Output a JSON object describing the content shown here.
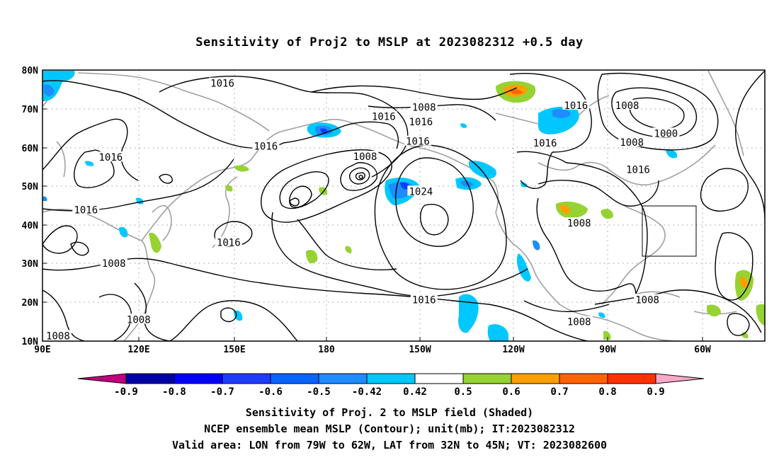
{
  "title": "Sensitivity of Proj2 to MSLP at 2023082312 +0.5 day",
  "lat_labels": [
    "80N",
    "70N",
    "60N",
    "50N",
    "40N",
    "30N",
    "20N",
    "10N"
  ],
  "lon_labels": [
    "90E",
    "120E",
    "150E",
    "180",
    "150W",
    "120W",
    "90W",
    "60W"
  ],
  "contour_labels": [
    {
      "text": "1016",
      "lon": 148,
      "lat": 76.4
    },
    {
      "text": "1008",
      "lon": -147,
      "lat": 70.2
    },
    {
      "text": "1016",
      "lon": -160,
      "lat": 67.8
    },
    {
      "text": "1016",
      "lon": -148,
      "lat": 66.5
    },
    {
      "text": "1016",
      "lon": -98,
      "lat": 70.7
    },
    {
      "text": "1008",
      "lon": -81.5,
      "lat": 70.7
    },
    {
      "text": "1000",
      "lon": -69,
      "lat": 63.5
    },
    {
      "text": "1016",
      "lon": -108,
      "lat": 61
    },
    {
      "text": "1008",
      "lon": -80,
      "lat": 61.2
    },
    {
      "text": "1016",
      "lon": 162,
      "lat": 60.2
    },
    {
      "text": "1016",
      "lon": 112,
      "lat": 57.3
    },
    {
      "text": "1008",
      "lon": -166,
      "lat": 57.5
    },
    {
      "text": "1016",
      "lon": -149,
      "lat": 61.4
    },
    {
      "text": "1016",
      "lon": -78,
      "lat": 54.1
    },
    {
      "text": "1024",
      "lon": -148,
      "lat": 48.5
    },
    {
      "text": "1016",
      "lon": 104,
      "lat": 43.7
    },
    {
      "text": "1008",
      "lon": -97,
      "lat": 40.3
    },
    {
      "text": "1016",
      "lon": 150,
      "lat": 35.3
    },
    {
      "text": "1008",
      "lon": 113,
      "lat": 29.9
    },
    {
      "text": "1016",
      "lon": -147,
      "lat": 20.5
    },
    {
      "text": "1008",
      "lon": -75,
      "lat": 20.5
    },
    {
      "text": "1008",
      "lon": 121,
      "lat": 15.4
    },
    {
      "text": "1008",
      "lon": -97,
      "lat": 14.8
    },
    {
      "text": "1008",
      "lon": 95,
      "lat": 11.2
    }
  ],
  "colorbar": {
    "levels": [
      "-0.9",
      "-0.8",
      "-0.7",
      "-0.6",
      "-0.5",
      "-0.42",
      "0.42",
      "0.5",
      "0.6",
      "0.7",
      "0.8",
      "0.9"
    ],
    "colors": [
      "#c0007c",
      "#0000a8",
      "#0000ff",
      "#1e3cff",
      "#0a64ff",
      "#1e8cff",
      "#00c8ff",
      "#ffffff",
      "#96d232",
      "#ffa000",
      "#ff6400",
      "#ff3200",
      "#ff0000",
      "#f8a8c8"
    ]
  },
  "shading_colors": {
    "light_blue": "#00c8ff",
    "blue": "#1e8cff",
    "dark_blue": "#0a40ff",
    "green": "#96d232",
    "orange": "#ffa000",
    "red_orange": "#ff6400"
  },
  "valid_box": {
    "lon_from": "79W",
    "lon_to": "62W",
    "lat_from": "32N",
    "lat_to": "45N"
  },
  "caption_lines": [
    "Sensitivity of Proj. 2 to MSLP field (Shaded)",
    "NCEP ensemble mean MSLP (Contour); unit(mb); IT:2023082312",
    "Valid area: LON from 79W to 62W, LAT from 32N to 45N; VT: 2023082600"
  ]
}
